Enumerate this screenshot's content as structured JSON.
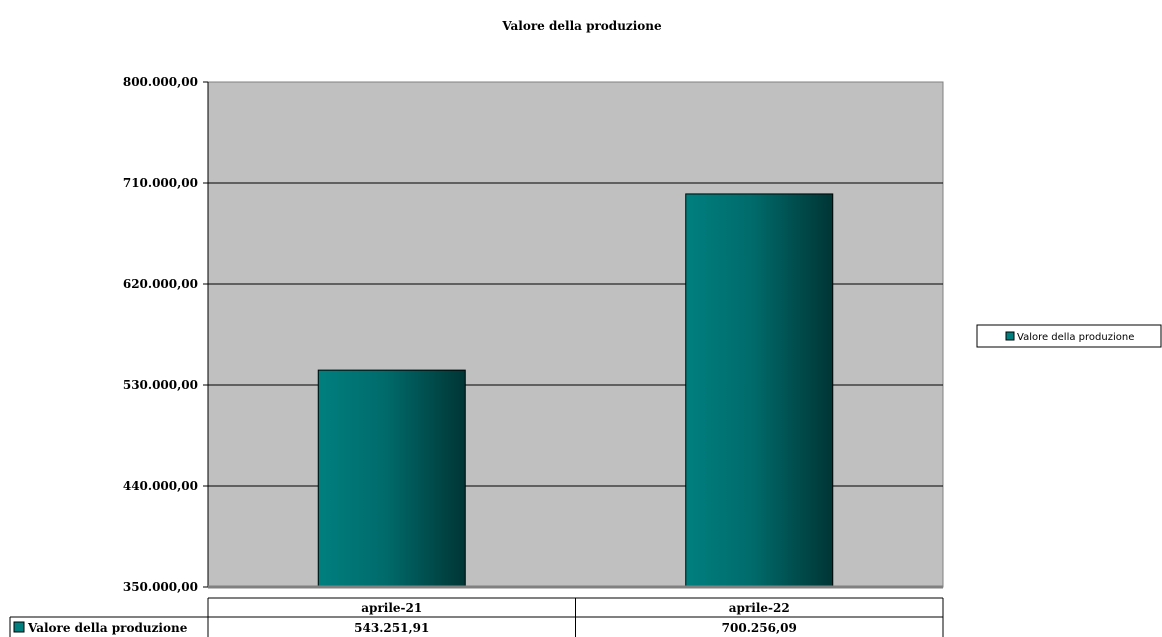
{
  "chart_data": {
    "type": "bar",
    "title": "Valore della produzione",
    "categories": [
      "aprile-21",
      "aprile-22"
    ],
    "series": [
      {
        "name": "Valore della produzione",
        "values": [
          543251.91,
          700256.09
        ],
        "value_labels": [
          "543.251,91",
          "700.256,09"
        ],
        "color": "#007f7f"
      }
    ],
    "ylim": [
      350000,
      800000
    ],
    "yticks": [
      350000,
      440000,
      530000,
      620000,
      710000,
      800000
    ],
    "ytick_labels": [
      "350.000,00",
      "440.000,00",
      "530.000,00",
      "620.000,00",
      "710.000,00",
      "800.000,00"
    ],
    "xlabel": "",
    "ylabel": "",
    "grid": true,
    "legend": "right",
    "data_table": true,
    "plot_background": "#c0c0c0"
  }
}
